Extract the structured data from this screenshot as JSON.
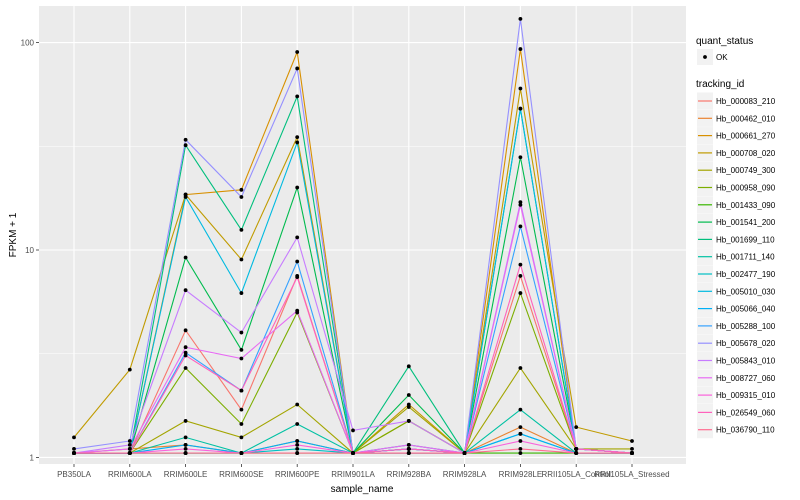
{
  "chart_data": {
    "type": "line",
    "title": "",
    "xlabel": "sample_name",
    "ylabel": "FPKM + 1",
    "yscale": "log10",
    "ylim": [
      0.93,
      150
    ],
    "y_ticks": [
      1,
      10,
      100
    ],
    "y_tick_labels": [
      "1",
      "10",
      "100"
    ],
    "grid": true,
    "legend_position": "right",
    "categories": [
      "PB350LA",
      "RRIM600LA",
      "RRIM600LE",
      "RRIM600SE",
      "RRIM600PE",
      "RRIM901LA",
      "RRIM928BA",
      "RRIM928LA",
      "RRIM928LE",
      "RRII105LA_Control",
      "RRII105LA_Stressed"
    ],
    "shape_legend": {
      "title": "quant_status",
      "items": [
        "OK"
      ]
    },
    "color_legend_title": "tracking_id",
    "series": [
      {
        "name": "Hb_000083_210",
        "color": "#F8766D",
        "values": [
          1.05,
          1.05,
          4.1,
          1.7,
          7.5,
          1.05,
          1.1,
          1.05,
          7.5,
          1.1,
          1.05
        ]
      },
      {
        "name": "Hb_000462_010",
        "color": "#EA8331",
        "values": [
          1.05,
          1.1,
          1.15,
          1.05,
          1.2,
          1.05,
          1.1,
          1.05,
          1.4,
          1.05,
          1.05
        ]
      },
      {
        "name": "Hb_000661_270",
        "color": "#D89000",
        "values": [
          1.05,
          1.05,
          18.5,
          19.5,
          90.0,
          1.05,
          1.5,
          1.05,
          93.0,
          1.1,
          1.05
        ]
      },
      {
        "name": "Hb_000708_020",
        "color": "#C09B00",
        "values": [
          1.25,
          2.65,
          18.5,
          9.0,
          35.0,
          1.05,
          1.8,
          1.05,
          60.0,
          1.4,
          1.2
        ]
      },
      {
        "name": "Hb_000749_300",
        "color": "#A3A500",
        "values": [
          1.05,
          1.05,
          1.5,
          1.25,
          1.8,
          1.05,
          1.75,
          1.05,
          2.7,
          1.1,
          1.1
        ]
      },
      {
        "name": "Hb_000958_090",
        "color": "#7CAE00",
        "values": [
          1.05,
          1.05,
          2.7,
          1.45,
          5.0,
          1.05,
          1.5,
          1.05,
          6.2,
          1.1,
          1.05
        ]
      },
      {
        "name": "Hb_001433_090",
        "color": "#39B600",
        "values": [
          1.05,
          1.05,
          1.05,
          1.05,
          1.05,
          1.05,
          1.05,
          1.05,
          1.05,
          1.05,
          1.05
        ]
      },
      {
        "name": "Hb_001541_200",
        "color": "#00BB4E",
        "values": [
          1.05,
          1.05,
          9.2,
          3.3,
          20.0,
          1.05,
          2.0,
          1.05,
          28.0,
          1.1,
          1.05
        ]
      },
      {
        "name": "Hb_001699_110",
        "color": "#00BF7D",
        "values": [
          1.05,
          1.05,
          32.0,
          12.5,
          55.0,
          1.05,
          2.75,
          1.05,
          48.0,
          1.1,
          1.05
        ]
      },
      {
        "name": "Hb_001711_140",
        "color": "#00C1A3",
        "values": [
          1.05,
          1.05,
          1.25,
          1.05,
          1.45,
          1.05,
          1.15,
          1.05,
          1.7,
          1.05,
          1.05
        ]
      },
      {
        "name": "Hb_002477_190",
        "color": "#00BFC4",
        "values": [
          1.05,
          1.05,
          1.05,
          1.05,
          1.1,
          1.05,
          1.05,
          1.05,
          1.3,
          1.05,
          1.05
        ]
      },
      {
        "name": "Hb_005010_030",
        "color": "#00BAE0",
        "values": [
          1.05,
          1.05,
          18.0,
          6.2,
          33.0,
          1.05,
          1.1,
          1.05,
          48.0,
          1.1,
          1.05
        ]
      },
      {
        "name": "Hb_005066_040",
        "color": "#00B0F6",
        "values": [
          1.05,
          1.05,
          1.15,
          1.05,
          1.2,
          1.05,
          1.1,
          1.05,
          1.3,
          1.05,
          1.05
        ]
      },
      {
        "name": "Hb_005288_100",
        "color": "#35A2FF",
        "values": [
          1.05,
          1.05,
          3.2,
          2.1,
          8.8,
          1.05,
          1.1,
          1.05,
          13.0,
          1.1,
          1.05
        ]
      },
      {
        "name": "Hb_005678_020",
        "color": "#9590FF",
        "values": [
          1.1,
          1.2,
          34.0,
          18.0,
          75.0,
          1.05,
          1.1,
          1.05,
          130.0,
          1.1,
          1.05
        ]
      },
      {
        "name": "Hb_005843_010",
        "color": "#C77CFF",
        "values": [
          1.05,
          1.15,
          6.4,
          4.0,
          11.5,
          1.35,
          1.5,
          1.05,
          17.0,
          1.1,
          1.05
        ]
      },
      {
        "name": "Hb_008727_060",
        "color": "#E76BF3",
        "values": [
          1.05,
          1.1,
          3.4,
          3.0,
          5.1,
          1.05,
          1.15,
          1.05,
          16.5,
          1.1,
          1.05
        ]
      },
      {
        "name": "Hb_009315_010",
        "color": "#FA62DB",
        "values": [
          1.05,
          1.05,
          1.1,
          1.05,
          1.15,
          1.05,
          1.05,
          1.05,
          1.2,
          1.05,
          1.05
        ]
      },
      {
        "name": "Hb_026549_060",
        "color": "#FF62BC",
        "values": [
          1.05,
          1.05,
          3.1,
          2.1,
          7.4,
          1.05,
          1.1,
          1.05,
          8.5,
          1.1,
          1.05
        ]
      },
      {
        "name": "Hb_036790_110",
        "color": "#FF6C91",
        "values": [
          1.05,
          1.05,
          1.05,
          1.05,
          1.05,
          1.05,
          1.05,
          1.05,
          1.1,
          1.05,
          1.05
        ]
      }
    ]
  }
}
